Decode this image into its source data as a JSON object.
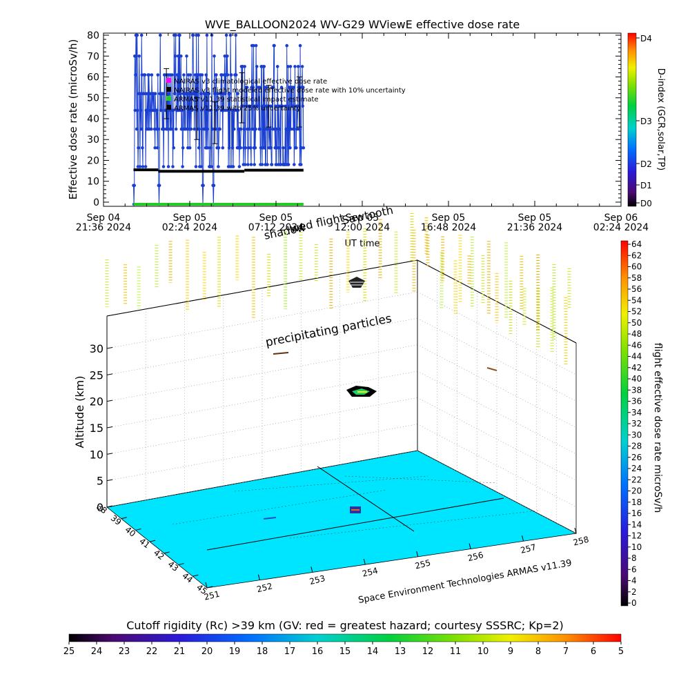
{
  "chart_data": [
    {
      "type": "line",
      "title": "WVE_BALLOON2024 WV-G29 WViewE effective dose rate",
      "xlabel": "UT time",
      "ylabel": "Effective dose rate (microSv/h)",
      "ylim": [
        -2,
        81
      ],
      "grid": false,
      "x_ticks": [
        {
          "line1": "Sep 04",
          "line2": "21:36 2024"
        },
        {
          "line1": "Sep 05",
          "line2": "02:24 2024"
        },
        {
          "line1": "Sep 05",
          "line2": "07:12 2024"
        },
        {
          "line1": "Sep 05",
          "line2": "12:00 2024"
        },
        {
          "line1": "Sep 05",
          "line2": "16:48 2024"
        },
        {
          "line1": "Sep 05",
          "line2": "21:36 2024"
        },
        {
          "line1": "Sep 06",
          "line2": "02:24 2024"
        }
      ],
      "y_ticks": [
        0,
        10,
        20,
        30,
        40,
        50,
        60,
        70,
        80
      ],
      "legend": {
        "placement": "top-left",
        "entries": [
          "NAIRAS v3 climatological effective dose rate",
          "NAIRAS v3 flight modeled effective dose rate with 10% uncertainty",
          "ARMAS v11.39 statistical impact estimate",
          "ARMAS v11.39 with 25% uncertainty"
        ]
      },
      "annotations": [
        "shadow",
        "wed flight",
        "Sawtooth"
      ],
      "series": [
        {
          "color": "#1a3fd0",
          "x_hours_range": [
            1.67,
            11.13
          ],
          "levels_early": [
            17,
            26,
            35,
            44,
            52,
            61,
            70,
            80
          ],
          "levels_late": [
            18,
            26,
            35,
            46,
            55,
            65,
            75
          ],
          "dropouts_hours": [
            1.69,
            3.09,
            5.54,
            6.11
          ]
        },
        {
          "color": "#000000",
          "segments": [
            {
              "x_start_hours": 1.67,
              "x_end_hours": 3.05,
              "y": 15.5
            },
            {
              "x_start_hours": 3.05,
              "x_end_hours": 7.84,
              "y": 14.8
            },
            {
              "x_start_hours": 7.84,
              "x_end_hours": 11.13,
              "y": 15.3
            }
          ]
        },
        {
          "color": "#22cc22",
          "x_start_hours": 1.67,
          "x_end_hours": 11.13,
          "y": -1
        }
      ],
      "colorbar": {
        "label": "D-index (GCR,solar,TP)",
        "ticks": [
          "D4",
          "D3",
          "D2",
          "D1",
          "D0"
        ]
      }
    },
    {
      "type": "scatter",
      "zlabel": "Altitude (km)",
      "z_ticks": [
        0,
        5,
        10,
        15,
        20,
        25,
        30
      ],
      "x_ticks": [
        "251",
        "252",
        "253",
        "254",
        "255",
        "256",
        "257",
        "258"
      ],
      "y_ticks": [
        "38",
        "39",
        "40",
        "41",
        "42",
        "43",
        "44",
        "45"
      ],
      "annotation": "precipitating particles",
      "credit": "Space Environment Technologies ARMAS v11.39",
      "floor_color": "#00e5ff",
      "colorbar": {
        "label": "flight effective dose rate microSv/h",
        "ticks": [
          "64",
          "62",
          "60",
          "58",
          "56",
          "54",
          "52",
          "50",
          "48",
          "46",
          "44",
          "42",
          "40",
          "38",
          "36",
          "34",
          "32",
          "30",
          "28",
          "26",
          "24",
          "22",
          "20",
          "18",
          "16",
          "14",
          "12",
          "10",
          "8",
          "6",
          "4",
          "2",
          "0"
        ]
      }
    },
    {
      "type": "heatmap",
      "title": "Cutoff rigidity (Rc) >39 km (GV: red = greatest hazard; courtesy SSSRC; Kp=2)",
      "ticks": [
        "25",
        "24",
        "23",
        "22",
        "21",
        "20",
        "19",
        "18",
        "17",
        "16",
        "15",
        "14",
        "13",
        "12",
        "11",
        "10",
        "9",
        "8",
        "7",
        "6",
        "5"
      ]
    }
  ]
}
